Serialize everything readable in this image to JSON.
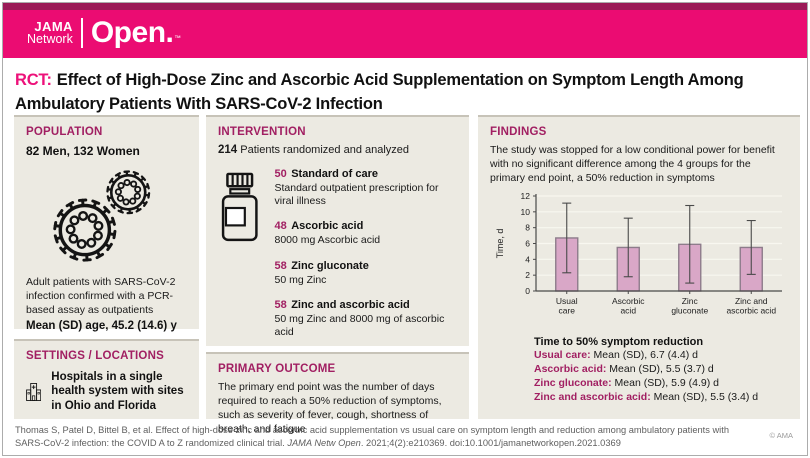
{
  "colors": {
    "strip_maroon": "#9B1A57",
    "band_pink": "#EB0C72",
    "accent_pink": "#ED117A",
    "heading_magenta": "#A11F62",
    "panel_bg": "#ECEAE2",
    "bar_fill": "#D9A7C7",
    "bar_border": "#8D7C8B",
    "error_color": "#4A4A4A",
    "grid_color": "#F8F7F0",
    "axis_color": "#4A4A4A"
  },
  "header": {
    "logo_line1": "JAMA",
    "logo_line2": "Network",
    "logo_product": "Open.",
    "logo_tm": "™"
  },
  "title": {
    "tag": "RCT:",
    "text": "Effect of High-Dose Zinc and Ascorbic Acid Supplementation on Symptom Length Among Ambulatory Patients With SARS-CoV-2 Infection"
  },
  "population": {
    "heading": "POPULATION",
    "summary": "82 Men, 132 Women",
    "icon": "coronavirus-icon",
    "description": "Adult patients with SARS-CoV-2 infection confirmed with a PCR-based assay as outpatients",
    "age": "Mean (SD) age, 45.2 (14.6) y"
  },
  "settings": {
    "heading": "SETTINGS / LOCATIONS",
    "icon": "hospital-icon",
    "description": "Hospitals in a single health system with sites in Ohio and Florida"
  },
  "intervention": {
    "heading": "INTERVENTION",
    "icon": "pill-bottle-icon",
    "total_n": "214",
    "total_label": "Patients randomized and analyzed",
    "groups": [
      {
        "n": "50",
        "name": "Standard of care",
        "description": "Standard outpatient prescription for viral illness"
      },
      {
        "n": "48",
        "name": "Ascorbic acid",
        "description": "8000 mg Ascorbic acid"
      },
      {
        "n": "58",
        "name": "Zinc gluconate",
        "description": "50 mg Zinc"
      },
      {
        "n": "58",
        "name": "Zinc and ascorbic acid",
        "description": "50 mg Zinc and 8000 mg of ascorbic acid"
      }
    ]
  },
  "primary_outcome": {
    "heading": "PRIMARY OUTCOME",
    "description": "The primary end point was the number of days required to reach a 50% reduction of symptoms, such as severity of fever, cough, shortness of breath, and fatigue"
  },
  "findings": {
    "heading": "FINDINGS",
    "description": "The study was stopped for a low conditional power for benefit with no significant difference among the 4 groups for the primary end point, a 50% reduction in symptoms",
    "results_title": "Time to 50% symptom reduction",
    "results": [
      {
        "label": "Usual care:",
        "value": "Mean (SD), 6.7 (4.4) d"
      },
      {
        "label": "Ascorbic acid:",
        "value": "Mean (SD), 5.5 (3.7) d"
      },
      {
        "label": "Zinc gluconate:",
        "value": "Mean (SD), 5.9 (4.9) d"
      },
      {
        "label": "Zinc and ascorbic acid:",
        "value": "Mean (SD), 5.5 (3.4) d"
      }
    ]
  },
  "chart_data": {
    "type": "bar",
    "title": "",
    "xlabel": "",
    "ylabel": "Time, d",
    "categories": [
      [
        "Usual",
        "care"
      ],
      [
        "Ascorbic",
        "acid"
      ],
      [
        "Zinc",
        "gluconate"
      ],
      [
        "Zinc and",
        "ascorbic acid"
      ]
    ],
    "values": [
      6.7,
      5.5,
      5.9,
      5.5
    ],
    "sd": [
      4.4,
      3.7,
      4.9,
      3.4
    ],
    "error_low": [
      2.3,
      1.8,
      1.0,
      2.1
    ],
    "error_high": [
      11.1,
      9.2,
      10.8,
      8.9
    ],
    "ylim": [
      0,
      12
    ],
    "yticks": [
      0,
      2,
      4,
      6,
      8,
      10,
      12
    ],
    "grid": true,
    "legend": "none"
  },
  "footer": {
    "citation_part1": "Thomas S, Patel D, Bittel B, et al. Effect of high-dose zinc and ascorbic acid supplementation vs usual care on symptom length and reduction among ambulatory patients with SARS-CoV-2 infection: the COVID A to Z randomized clinical trial. ",
    "citation_journal": "JAMA Netw Open",
    "citation_part2": ". 2021;4(2):e210369. doi:10.1001/jamanetworkopen.2021.0369",
    "copyright": "© AMA"
  }
}
